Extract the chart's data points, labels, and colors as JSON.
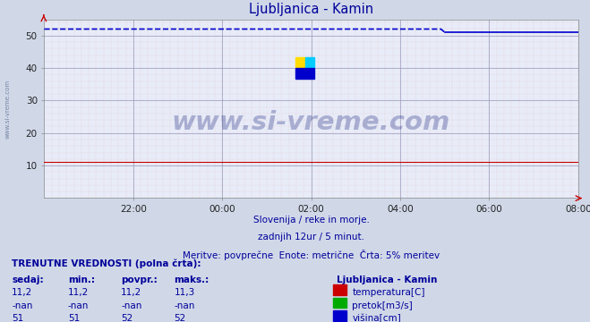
{
  "title": "Ljubljanica - Kamin",
  "title_color": "#000099",
  "bg_color": "#d0d8e8",
  "plot_bg_color": "#e8ecf8",
  "grid_color_major": "#9999bb",
  "grid_color_minor": "#cc9999",
  "x_ticks_labels": [
    "22:00",
    "00:00",
    "02:00",
    "04:00",
    "06:00",
    "08:00"
  ],
  "x_tick_positions": [
    24,
    48,
    72,
    96,
    120,
    144
  ],
  "x_total_points": 145,
  "y_min": 0,
  "y_max": 55,
  "y_ticks": [
    10,
    20,
    30,
    40,
    50
  ],
  "temp_color": "#cc0000",
  "temp_value": 11.2,
  "flow_color": "#00aa00",
  "height_color": "#0000cc",
  "height_value_before": 52,
  "height_value_after": 51,
  "height_step_x": 108,
  "watermark": "www.si-vreme.com",
  "watermark_color": "#1a237e",
  "watermark_alpha": 0.3,
  "logo_yellow": "#ffdd00",
  "logo_cyan": "#00ccff",
  "logo_blue": "#0000cc",
  "subtitle1": "Slovenija / reke in morje.",
  "subtitle2": "zadnjih 12ur / 5 minut.",
  "subtitle3": "Meritve: povprečne  Enote: metrične  Črta: 5% meritev",
  "subtitle_color": "#000099",
  "table_header": "TRENUTNE VREDNOSTI (polna črta):",
  "table_col_headers": [
    "sedaj:",
    "min.:",
    "povpr.:",
    "maks.:"
  ],
  "table_rows": [
    [
      "11,2",
      "11,2",
      "11,2",
      "11,3",
      "#cc0000",
      "temperatura[C]"
    ],
    [
      "-nan",
      "-nan",
      "-nan",
      "-nan",
      "#00aa00",
      "pretok[m3/s]"
    ],
    [
      "51",
      "51",
      "52",
      "52",
      "#0000cc",
      "višina[cm]"
    ]
  ],
  "table_color": "#000099",
  "left_label": "www.si-vreme.com"
}
